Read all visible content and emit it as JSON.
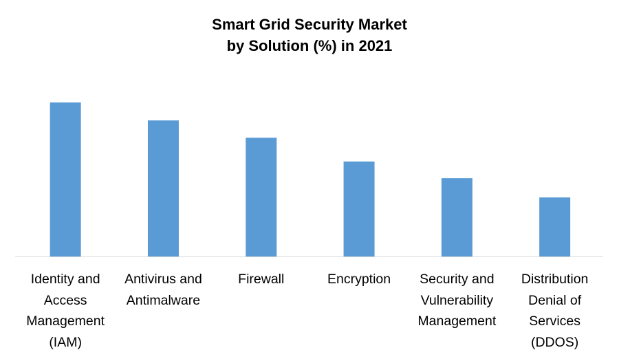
{
  "chart_data": {
    "type": "bar",
    "title": [
      "Smart Grid Security Market",
      "by Solution (%) in 2021"
    ],
    "categories": [
      [
        "Identity and",
        "Access",
        "Management",
        "(IAM)"
      ],
      [
        "Antivirus and",
        "Antimalware"
      ],
      [
        "Firewall"
      ],
      [
        "Encryption"
      ],
      [
        "Security and",
        "Vulnerability",
        "Management"
      ],
      [
        "Distribution",
        "Denial of",
        "Services",
        "(DDOS)"
      ]
    ],
    "values": [
      24.0,
      21.2,
      18.5,
      14.8,
      12.2,
      9.2
    ],
    "xlabel": "",
    "ylabel": "",
    "ylim": [
      0,
      24.0
    ],
    "grid": false,
    "legend": "none",
    "bar_color": "#5B9BD5",
    "axis_color": "#D9D9D9"
  }
}
